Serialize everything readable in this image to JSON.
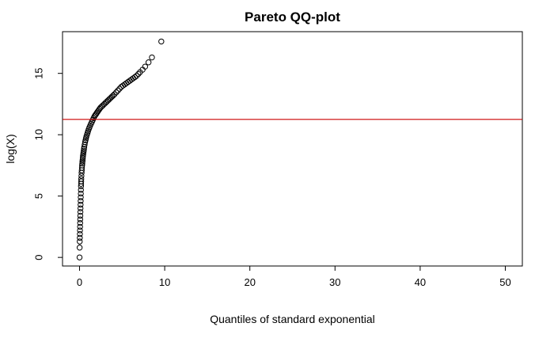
{
  "chart_data": {
    "type": "scatter",
    "title": "Pareto QQ-plot",
    "xlabel": "Quantiles of standard exponential",
    "ylabel": "log(X)",
    "xlim": [
      -2,
      52
    ],
    "ylim": [
      -0.7,
      18.4
    ],
    "xticks": [
      0,
      10,
      20,
      30,
      40,
      50
    ],
    "yticks": [
      0,
      5,
      10,
      15
    ],
    "grid": false,
    "legend": "none",
    "colors": {
      "points": "#000000",
      "hline": "#cc0000",
      "frame": "#000000"
    },
    "hline": {
      "y": 11.25,
      "color": "#cc0000"
    },
    "series": [
      {
        "x": [
          0.0,
          0.01,
          0.02,
          0.03,
          0.04,
          0.05,
          0.06,
          0.07,
          0.08,
          0.09,
          0.1,
          0.11,
          0.12,
          0.13,
          0.14,
          0.15,
          0.16,
          0.17,
          0.18,
          0.19,
          0.2,
          0.22,
          0.24,
          0.26,
          0.28,
          0.3,
          0.32,
          0.34,
          0.36,
          0.38,
          0.4,
          0.43,
          0.46,
          0.49,
          0.52,
          0.55,
          0.6,
          0.65,
          0.7,
          0.75,
          0.8,
          0.87,
          0.94,
          1.0,
          1.08,
          1.16,
          1.25,
          1.35,
          1.45,
          1.55,
          1.65,
          1.75,
          1.85,
          1.95,
          2.05,
          2.15,
          2.25,
          2.35,
          2.45,
          2.6,
          2.75,
          2.9,
          3.05,
          3.2,
          3.35,
          3.5,
          3.65,
          3.8,
          3.95,
          4.1,
          4.3,
          4.5,
          4.7,
          4.9,
          5.1,
          5.3,
          5.5,
          5.7,
          5.9,
          6.1,
          6.3,
          6.5,
          6.7,
          6.9,
          7.1,
          7.4,
          7.7,
          8.1,
          8.5,
          9.6
        ],
        "y": [
          0.0,
          0.8,
          1.3,
          1.6,
          1.9,
          2.2,
          2.5,
          2.8,
          3.1,
          3.4,
          3.7,
          4.0,
          4.3,
          4.6,
          4.9,
          5.2,
          5.5,
          5.8,
          6.0,
          6.2,
          6.4,
          6.65,
          6.9,
          7.1,
          7.3,
          7.5,
          7.65,
          7.8,
          7.95,
          8.1,
          8.25,
          8.4,
          8.55,
          8.7,
          8.85,
          9.0,
          9.2,
          9.4,
          9.55,
          9.7,
          9.85,
          10.0,
          10.15,
          10.3,
          10.45,
          10.6,
          10.75,
          10.9,
          11.05,
          11.2,
          11.35,
          11.5,
          11.6,
          11.7,
          11.8,
          11.9,
          12.0,
          12.1,
          12.2,
          12.3,
          12.4,
          12.5,
          12.6,
          12.7,
          12.8,
          12.9,
          13.0,
          13.1,
          13.2,
          13.3,
          13.45,
          13.6,
          13.75,
          13.9,
          14.0,
          14.1,
          14.2,
          14.3,
          14.4,
          14.5,
          14.6,
          14.7,
          14.8,
          14.95,
          15.1,
          15.3,
          15.55,
          15.9,
          16.3,
          17.6
        ]
      }
    ]
  }
}
